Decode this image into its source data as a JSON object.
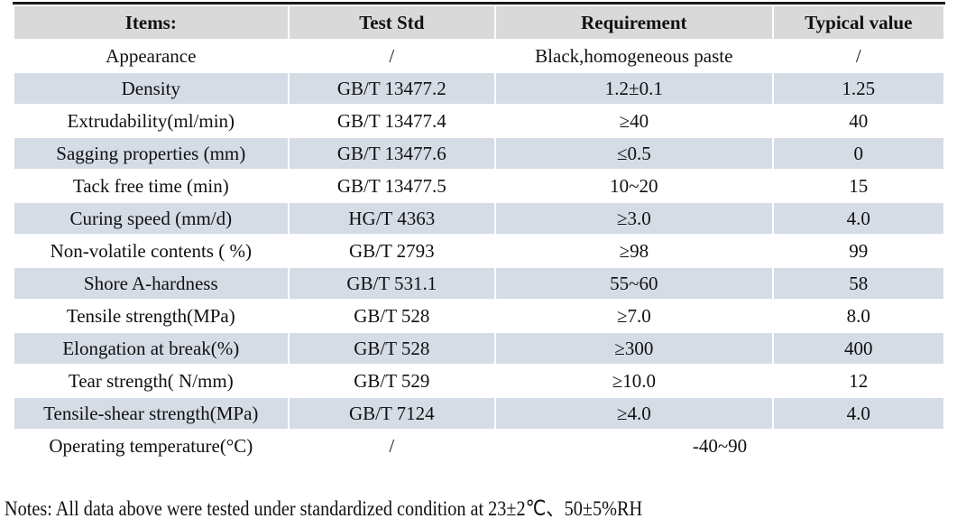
{
  "colors": {
    "header_bg": "#d9d9d9",
    "alt_row_bg": "#d5dce5",
    "border": "#1a1a1a",
    "text": "#111111"
  },
  "table": {
    "headers": [
      "Items:",
      "Test Std",
      "Requirement",
      "Typical value"
    ],
    "rows": [
      {
        "item": "Appearance",
        "std": "/",
        "req": "Black,homogeneous paste",
        "typ": "/"
      },
      {
        "item": "Density",
        "std": "GB/T 13477.2",
        "req": "1.2±0.1",
        "typ": "1.25"
      },
      {
        "item": "Extrudability(ml/min)",
        "std": "GB/T 13477.4",
        "req": "≥40",
        "typ": "40"
      },
      {
        "item": "Sagging properties (mm)",
        "std": "GB/T 13477.6",
        "req": "≤0.5",
        "typ": "0"
      },
      {
        "item": "Tack free time (min)",
        "std": "GB/T 13477.5",
        "req": "10~20",
        "typ": "15"
      },
      {
        "item": "Curing speed (mm/d)",
        "std": "HG/T 4363",
        "req": "≥3.0",
        "typ": "4.0"
      },
      {
        "item": "Non-volatile contents ( %)",
        "std": "GB/T 2793",
        "req": "≥98",
        "typ": "99"
      },
      {
        "item": "Shore A-hardness",
        "std": "GB/T 531.1",
        "req": "55~60",
        "typ": "58"
      },
      {
        "item": "Tensile strength(MPa)",
        "std": "GB/T 528",
        "req": "≥7.0",
        "typ": "8.0"
      },
      {
        "item": "Elongation at break(%)",
        "std": "GB/T 528",
        "req": "≥300",
        "typ": "400"
      },
      {
        "item": "Tear strength( N/mm)",
        "std": "GB/T 529",
        "req": "≥10.0",
        "typ": "12"
      },
      {
        "item": "Tensile-shear strength(MPa)",
        "std": "GB/T 7124",
        "req": "≥4.0",
        "typ": "4.0"
      },
      {
        "item": "Operating temperature(°C)",
        "std": "/",
        "req": "-40~90",
        "typ": "",
        "merged": true
      }
    ]
  },
  "notes": "Notes: All data above were tested under standardized condition at 23±2℃、50±5%RH"
}
